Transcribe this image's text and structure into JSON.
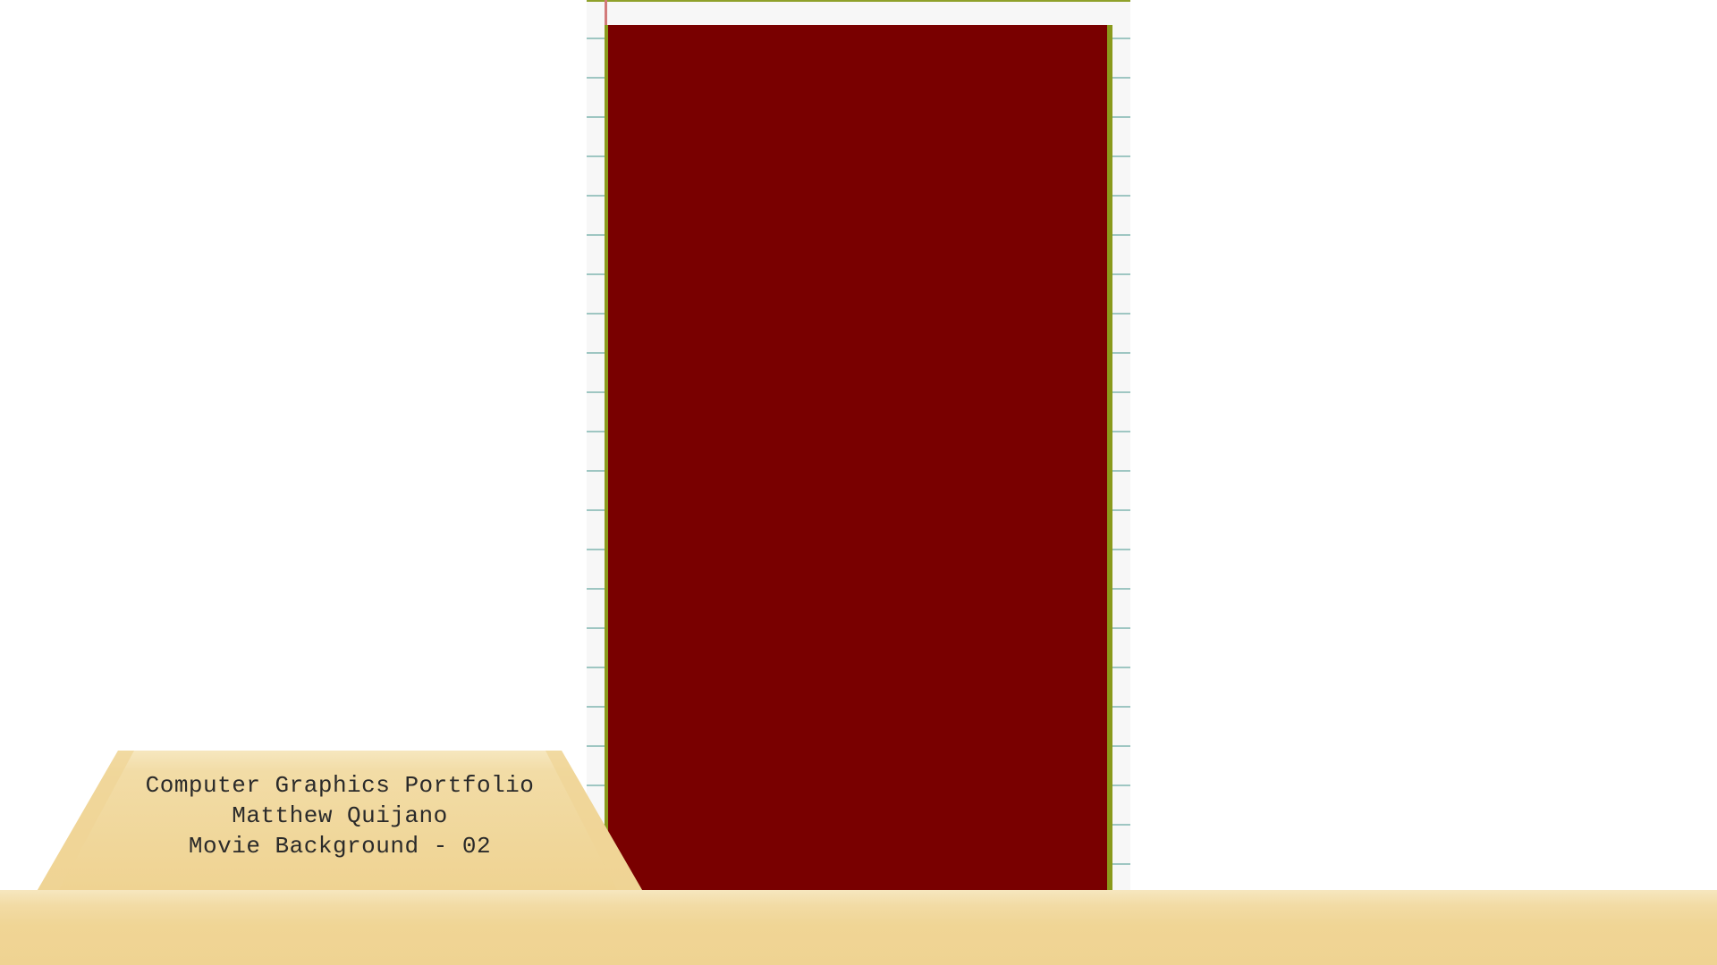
{
  "plaque": {
    "line1": "Computer Graphics Portfolio",
    "line2": "Matthew Quijano",
    "line3": "Movie Background - 02"
  },
  "colors": {
    "panel": "#790000",
    "plaque": "#efd392",
    "floor": "#efd392",
    "paper": "#f7f7f7",
    "paper_rule": "#9ec6c2",
    "paper_edge": "#8a9a1c",
    "margin_line": "#d27a7a"
  }
}
